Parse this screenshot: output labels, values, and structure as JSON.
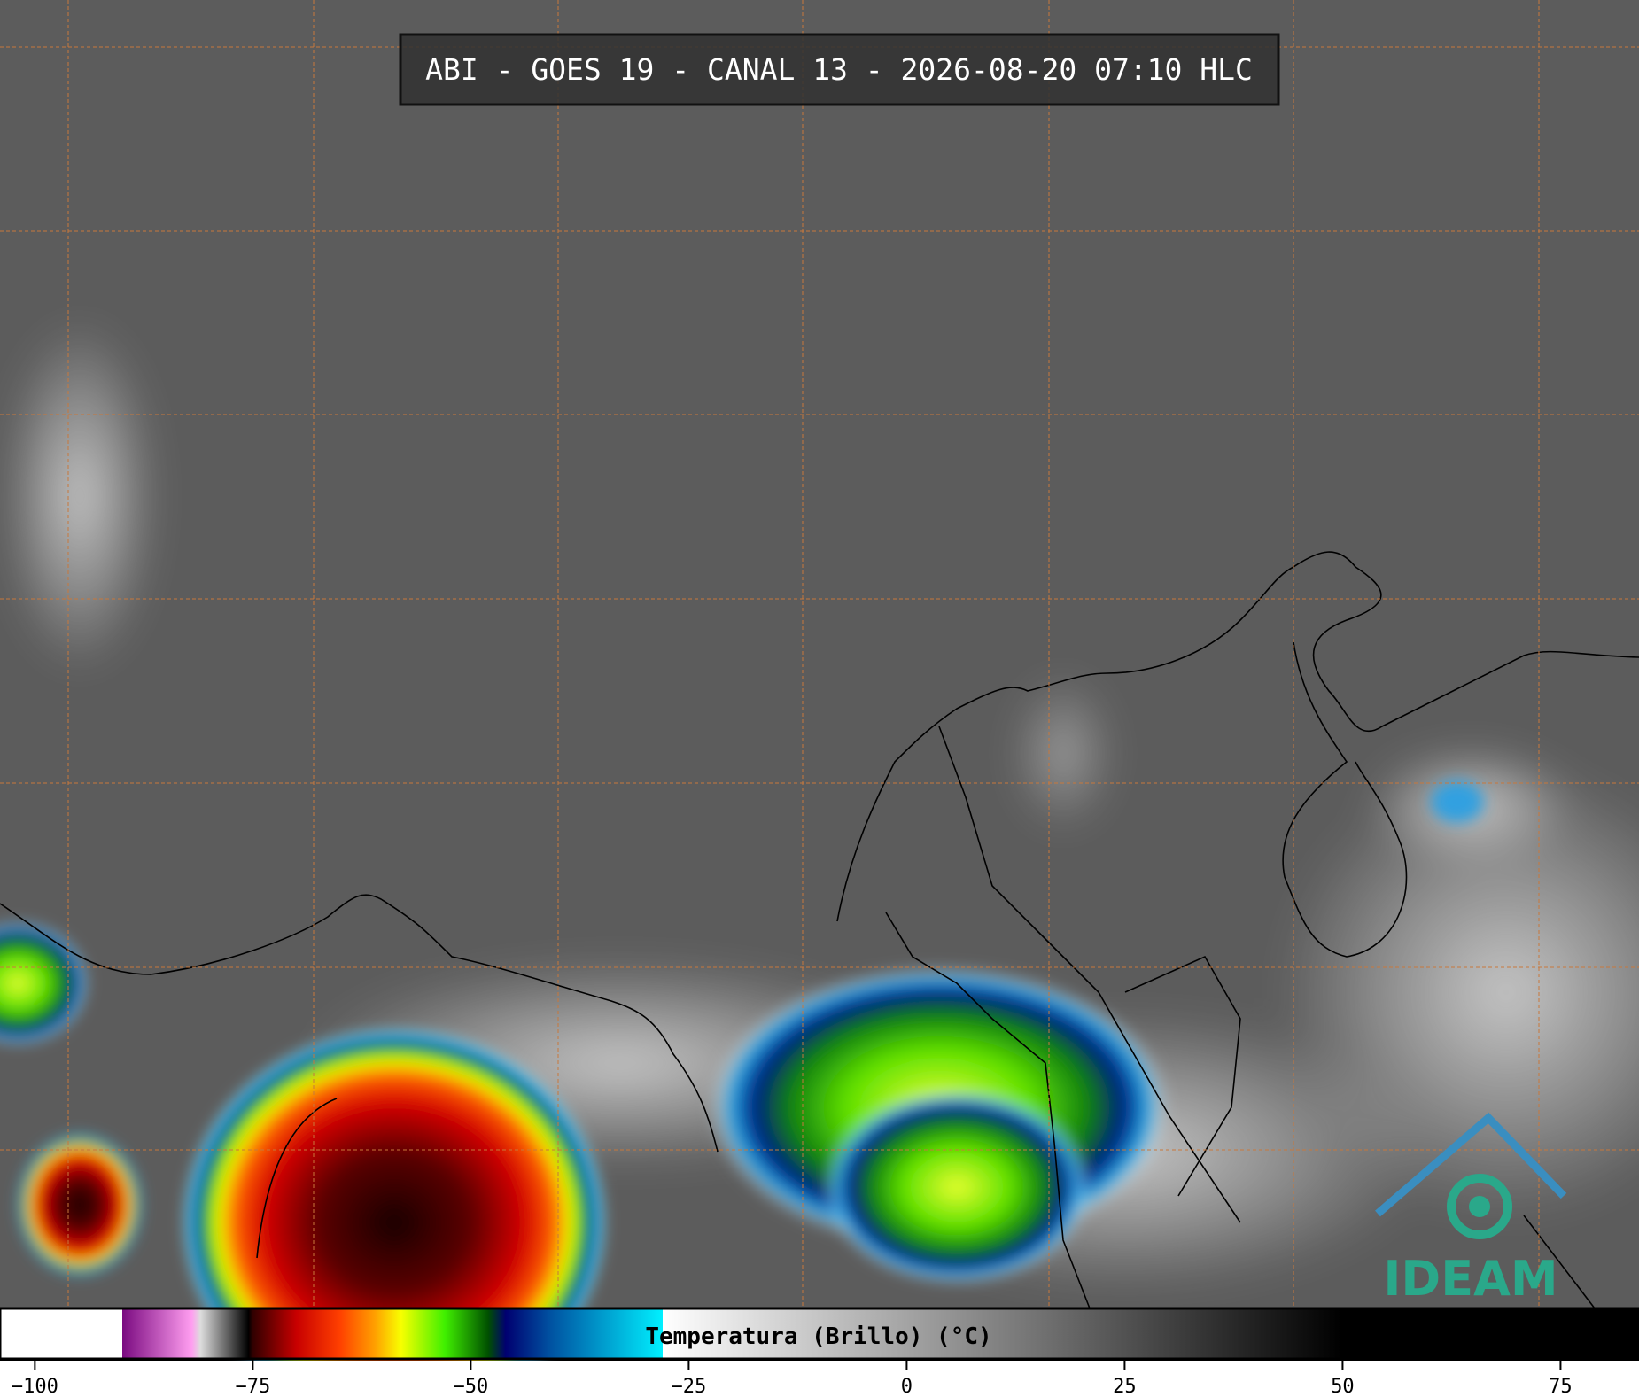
{
  "header": {
    "title": "ABI - GOES 19 - CANAL 13 - 2026-08-20 07:10 HLC"
  },
  "logo": {
    "text": "IDEAM"
  },
  "colorbar": {
    "label": "Temperatura (Brillo) (°C)",
    "lim": [
      -104,
      84
    ],
    "ticks": [
      {
        "value": -100,
        "label": "−100"
      },
      {
        "value": -75,
        "label": "−75"
      },
      {
        "value": -50,
        "label": "−50"
      },
      {
        "value": -25,
        "label": "−25"
      },
      0,
      25,
      50,
      75
    ],
    "colormap": [
      {
        "value": -104,
        "color": "#ffffff"
      },
      {
        "value": -90,
        "color": "#ffffff"
      },
      {
        "value": -90,
        "color": "#7a0a80"
      },
      {
        "value": -82,
        "color": "#ff9ef0"
      },
      {
        "value": -81,
        "color": "#dddddd"
      },
      {
        "value": -75.5,
        "color": "#000000"
      },
      {
        "value": -75,
        "color": "#300000"
      },
      {
        "value": -70,
        "color": "#c80000"
      },
      {
        "value": -65,
        "color": "#ff4000"
      },
      {
        "value": -61,
        "color": "#ffa000"
      },
      {
        "value": -58,
        "color": "#f8ff00"
      },
      {
        "value": -53,
        "color": "#40f000"
      },
      {
        "value": -48,
        "color": "#005000"
      },
      {
        "value": -46,
        "color": "#000070"
      },
      {
        "value": -41,
        "color": "#0050a0"
      },
      {
        "value": -28,
        "color": "#00f0ff"
      },
      {
        "value": -28,
        "color": "#ffffff"
      },
      {
        "value": 50,
        "color": "#000000"
      },
      {
        "value": 84,
        "color": "#000000"
      }
    ]
  }
}
